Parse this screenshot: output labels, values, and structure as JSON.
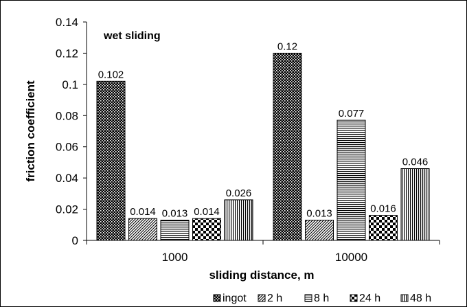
{
  "chart_data": {
    "type": "bar",
    "title": "",
    "annotation": "wet sliding",
    "xlabel": "sliding distance, m",
    "ylabel": "friction coefficient",
    "categories": [
      "1000",
      "10000"
    ],
    "ylim": [
      0,
      0.14
    ],
    "yticks": [
      "0",
      "0.02",
      "0.04",
      "0.06",
      "0.08",
      "0.1",
      "0.12",
      "0.14"
    ],
    "grid": false,
    "legend_position": "bottom-right",
    "series": [
      {
        "name": "ingot",
        "values": [
          0.102,
          0.12
        ],
        "labels": [
          "0.102",
          "0.12"
        ],
        "pattern": "dots"
      },
      {
        "name": "2 h",
        "values": [
          0.014,
          0.013
        ],
        "labels": [
          "0.014",
          "0.013"
        ],
        "pattern": "diagonal"
      },
      {
        "name": "8 h",
        "values": [
          0.013,
          0.077
        ],
        "labels": [
          "0.013",
          "0.077"
        ],
        "pattern": "horizontal"
      },
      {
        "name": "24 h",
        "values": [
          0.014,
          0.016
        ],
        "labels": [
          "0.014",
          "0.016"
        ],
        "pattern": "checker"
      },
      {
        "name": "48 h",
        "values": [
          0.026,
          0.046
        ],
        "labels": [
          "0.026",
          "0.046"
        ],
        "pattern": "vertical"
      }
    ]
  }
}
